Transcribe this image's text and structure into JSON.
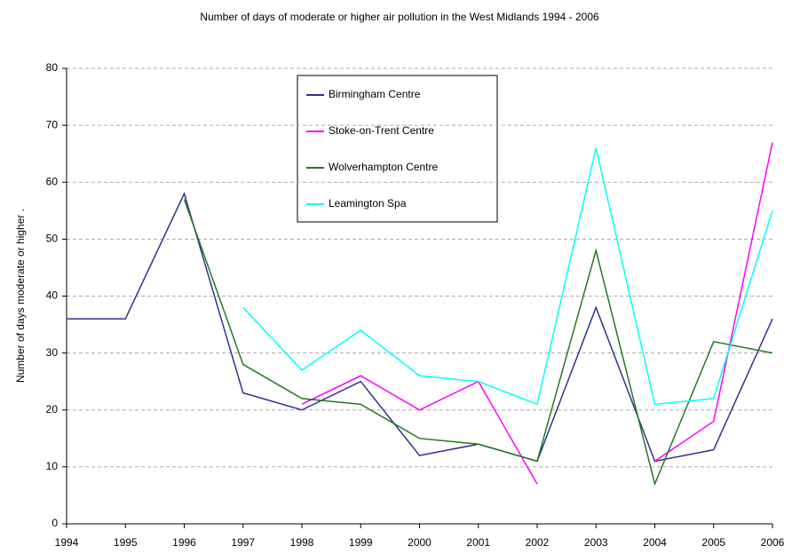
{
  "chart_data": {
    "type": "line",
    "title": "Number of days of moderate or higher air pollution in the West Midlands 1994 - 2006",
    "y_label": "Number of days moderate or higher .",
    "categories": [
      "1994",
      "1995",
      "1996",
      "1997",
      "1998",
      "1999",
      "2000",
      "2001",
      "2002",
      "2003",
      "2004",
      "2005",
      "2006"
    ],
    "series": [
      {
        "name": "Birmingham Centre",
        "color": "#2e3192",
        "values": [
          36,
          36,
          58,
          23,
          20,
          25,
          12,
          14,
          11,
          38,
          11,
          13,
          36
        ]
      },
      {
        "name": "Stoke-on-Trent Centre",
        "color": "#ff00ff",
        "values": [
          null,
          null,
          null,
          null,
          21,
          26,
          20,
          25,
          7,
          null,
          11,
          18,
          67
        ]
      },
      {
        "name": "Wolverhampton Centre",
        "color": "#1e7b1e",
        "values": [
          null,
          null,
          57,
          28,
          22,
          21,
          15,
          14,
          11,
          48,
          7,
          32,
          30
        ]
      },
      {
        "name": "Leamington Spa",
        "color": "#00ffff",
        "values": [
          null,
          null,
          null,
          38,
          27,
          34,
          26,
          25,
          21,
          66,
          21,
          22,
          55
        ]
      }
    ],
    "ylim": [
      0,
      80
    ],
    "yticks": [
      0,
      10,
      20,
      30,
      40,
      50,
      60,
      70,
      80
    ],
    "grid": true
  }
}
